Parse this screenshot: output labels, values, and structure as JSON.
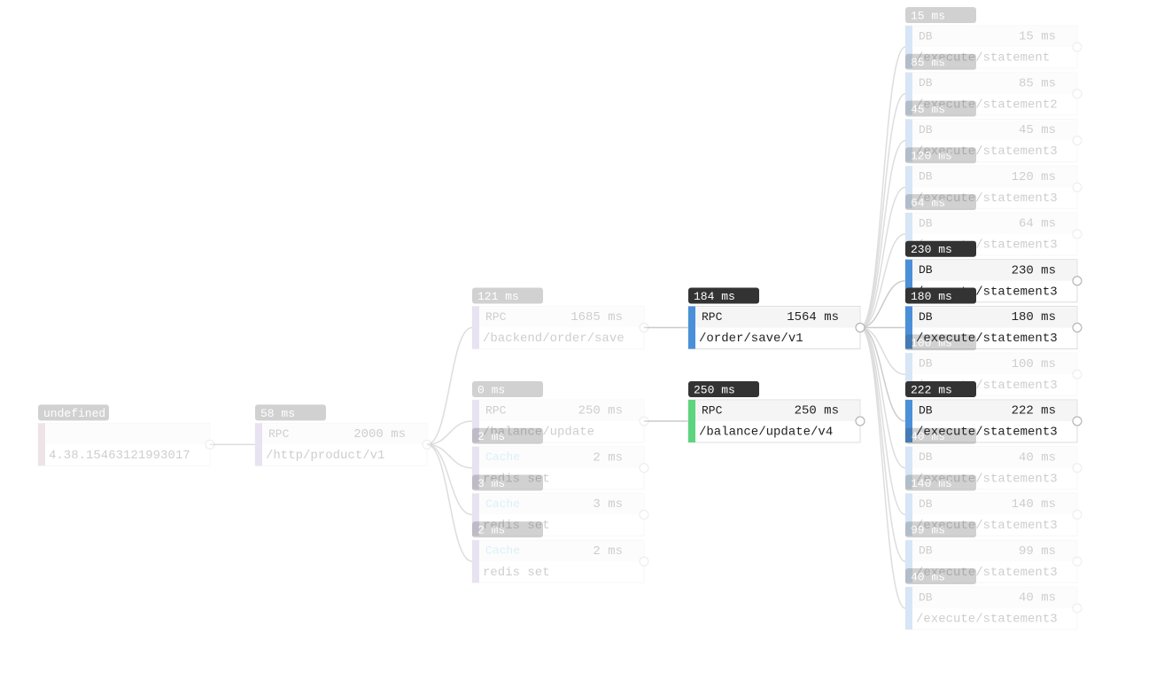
{
  "root": {
    "badge": "undefined",
    "label": "4.38.15463121993017",
    "color": "#b58a9a",
    "highlighted": false,
    "children": [
      {
        "badge": "58 ms",
        "type": "RPC",
        "duration": "2000 ms",
        "label": "/http/product/v1",
        "color": "#9b7fc4",
        "highlighted": false,
        "children": [
          {
            "badge": "121 ms",
            "type": "RPC",
            "duration": "1685 ms",
            "label": "/backend/order/save",
            "color": "#9b7fc4",
            "highlighted": false,
            "children": [
              {
                "badge": "184 ms",
                "type": "RPC",
                "duration": "1564 ms",
                "label": "/order/save/v1",
                "color": "#4a90d9",
                "highlighted": true,
                "children": [
                  {
                    "badge": "15 ms",
                    "type": "DB",
                    "duration": "15 ms",
                    "label": "/execute/statement",
                    "color": "#4a90d9",
                    "highlighted": false
                  },
                  {
                    "badge": "85 ms",
                    "type": "DB",
                    "duration": "85 ms",
                    "label": "/execute/statement2",
                    "color": "#4a90d9",
                    "highlighted": false
                  },
                  {
                    "badge": "45 ms",
                    "type": "DB",
                    "duration": "45 ms",
                    "label": "/execute/statement3",
                    "color": "#4a90d9",
                    "highlighted": false
                  },
                  {
                    "badge": "120 ms",
                    "type": "DB",
                    "duration": "120 ms",
                    "label": "/execute/statement3",
                    "color": "#4a90d9",
                    "highlighted": false
                  },
                  {
                    "badge": "64 ms",
                    "type": "DB",
                    "duration": "64 ms",
                    "label": "/execute/statement3",
                    "color": "#4a90d9",
                    "highlighted": false
                  },
                  {
                    "badge": "230 ms",
                    "type": "DB",
                    "duration": "230 ms",
                    "label": "/execute/statement3",
                    "color": "#4a90d9",
                    "highlighted": true
                  },
                  {
                    "badge": "180 ms",
                    "type": "DB",
                    "duration": "180 ms",
                    "label": "/execute/statement3",
                    "color": "#4a90d9",
                    "highlighted": true
                  },
                  {
                    "badge": "100 ms",
                    "type": "DB",
                    "duration": "100 ms",
                    "label": "/execute/statement3",
                    "color": "#4a90d9",
                    "highlighted": false
                  },
                  {
                    "badge": "222 ms",
                    "type": "DB",
                    "duration": "222 ms",
                    "label": "/execute/statement3",
                    "color": "#4a90d9",
                    "highlighted": true
                  },
                  {
                    "badge": "40 ms",
                    "type": "DB",
                    "duration": "40 ms",
                    "label": "/execute/statement3",
                    "color": "#4a90d9",
                    "highlighted": false
                  },
                  {
                    "badge": "140 ms",
                    "type": "DB",
                    "duration": "140 ms",
                    "label": "/execute/statement3",
                    "color": "#4a90d9",
                    "highlighted": false
                  },
                  {
                    "badge": "99 ms",
                    "type": "DB",
                    "duration": "99 ms",
                    "label": "/execute/statement3",
                    "color": "#4a90d9",
                    "highlighted": false
                  },
                  {
                    "badge": "40 ms",
                    "type": "DB",
                    "duration": "40 ms",
                    "label": "/execute/statement3",
                    "color": "#4a90d9",
                    "highlighted": false
                  }
                ]
              }
            ]
          },
          {
            "badge": "0 ms",
            "type": "RPC",
            "duration": "250 ms",
            "label": "/balance/update",
            "color": "#9b7fc4",
            "highlighted": false,
            "children": [
              {
                "badge": "250 ms",
                "type": "RPC",
                "duration": "250 ms",
                "label": "/balance/update/v4",
                "color": "#5dd47e",
                "highlighted": true
              }
            ]
          },
          {
            "badge": "2 ms",
            "type": "Cache",
            "type_color": "#5bc0de",
            "duration": "2 ms",
            "label": "redis set",
            "color": "#9b7fc4",
            "highlighted": false
          },
          {
            "badge": "3 ms",
            "type": "Cache",
            "type_color": "#5bc0de",
            "duration": "3 ms",
            "label": "redis set",
            "color": "#9b7fc4",
            "highlighted": false
          },
          {
            "badge": "2 ms",
            "type": "Cache",
            "type_color": "#5bc0de",
            "duration": "2 ms",
            "label": "redis set",
            "color": "#9b7fc4",
            "highlighted": false
          }
        ]
      }
    ]
  }
}
